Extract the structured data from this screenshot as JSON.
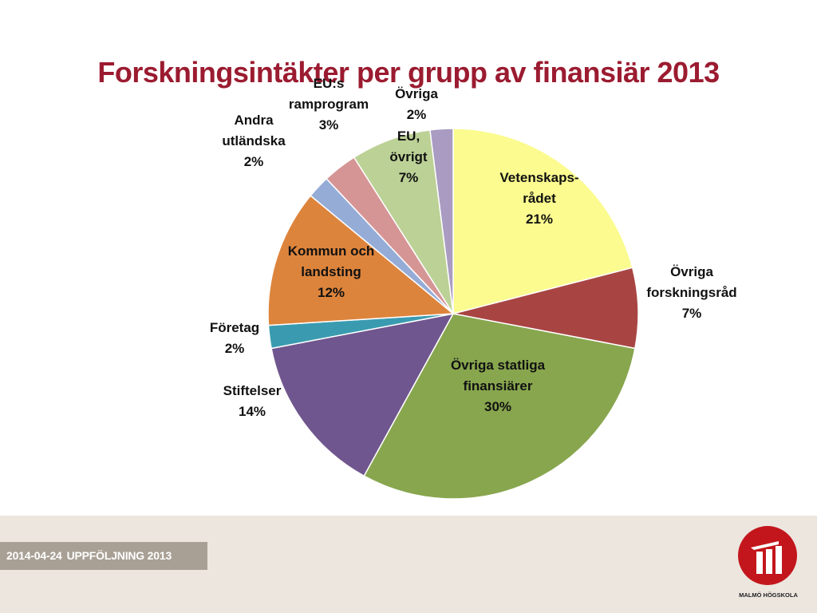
{
  "title": "Forskningsintäkter per grupp av finansiär 2013",
  "footer": {
    "date": "2014-04-24",
    "label": "UPPFÖLJNING 2013"
  },
  "logo": {
    "text": "MALMÖ HÖGSKOLA",
    "color": "#c3161c"
  },
  "chart_data": {
    "type": "pie",
    "title": "Forskningsintäkter per grupp av finansiär 2013",
    "slices": [
      {
        "name": "Vetenskaps-rådet",
        "label_lines": [
          "Vetenskaps-",
          "rådet",
          "21%"
        ],
        "value": 21,
        "color": "#fbfb8f"
      },
      {
        "name": "Övriga forskningsråd",
        "label_lines": [
          "Övriga",
          "forskningsråd",
          "7%"
        ],
        "value": 7,
        "color": "#a84543"
      },
      {
        "name": "Övriga statliga finansiärer",
        "label_lines": [
          "Övriga statliga",
          "finansiärer",
          "30%"
        ],
        "value": 30,
        "color": "#88a64e"
      },
      {
        "name": "Stiftelser",
        "label_lines": [
          "Stiftelser",
          "14%"
        ],
        "value": 14,
        "color": "#70568e"
      },
      {
        "name": "Företag",
        "label_lines": [
          "Företag",
          "2%"
        ],
        "value": 2,
        "color": "#3a9bb0"
      },
      {
        "name": "Kommun och landsting",
        "label_lines": [
          "Kommun och",
          "landsting",
          "12%"
        ],
        "value": 12,
        "color": "#dd843c"
      },
      {
        "name": "Andra utländska",
        "label_lines": [
          "Andra",
          "utländska",
          "2%"
        ],
        "value": 2,
        "color": "#95acd7"
      },
      {
        "name": "EU:s ramprogram",
        "label_lines": [
          "EU:s",
          "ramprogram",
          "3%"
        ],
        "value": 3,
        "color": "#d69595"
      },
      {
        "name": "EU, övrigt",
        "label_lines": [
          "EU,",
          "övrigt",
          "7%"
        ],
        "value": 7,
        "color": "#bcd196"
      },
      {
        "name": "Övriga",
        "label_lines": [
          "Övriga",
          "2%"
        ],
        "value": 2,
        "color": "#a99bc1"
      }
    ]
  }
}
